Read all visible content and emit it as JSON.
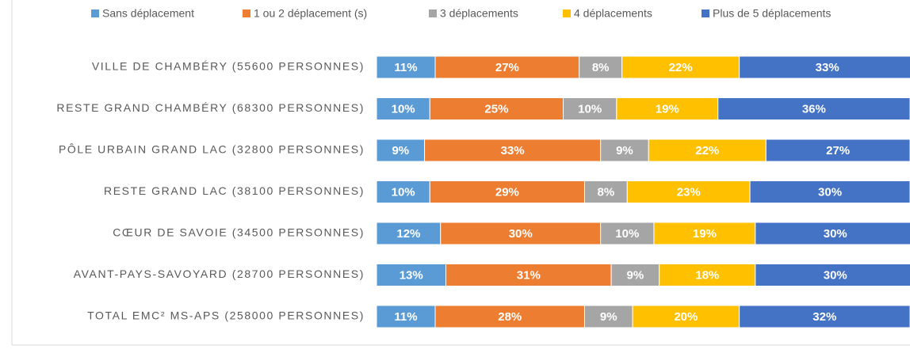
{
  "chart_data": {
    "type": "stacked_bar_horizontal",
    "categories": [
      "VILLE DE CHAMBÉRY (55600 PERSONNES)",
      "RESTE GRAND CHAMBÉRY (68300 PERSONNES)",
      "PÔLE URBAIN GRAND LAC (32800 PERSONNES)",
      "RESTE GRAND LAC (38100 PERSONNES)",
      "CŒUR DE SAVOIE (34500 PERSONNES)",
      "AVANT-PAYS-SAVOYARD (28700 PERSONNES)",
      "TOTAL EMC² MS-APS (258000 PERSONNES)"
    ],
    "series": [
      {
        "name": "Sans déplacement",
        "color": "#5b9bd5",
        "values": [
          11,
          10,
          9,
          10,
          12,
          13,
          11
        ],
        "value_labels": [
          "11%",
          "10%",
          "9%",
          "10%",
          "12%",
          "13%",
          "11%"
        ]
      },
      {
        "name": "1 ou 2 déplacement (s)",
        "color": "#ed7d31",
        "values": [
          27,
          25,
          33,
          29,
          30,
          31,
          28
        ],
        "value_labels": [
          "27%",
          "25%",
          "33%",
          "29%",
          "30%",
          "31%",
          "28%"
        ]
      },
      {
        "name": "3 déplacements",
        "color": "#a5a5a5",
        "values": [
          8,
          10,
          9,
          8,
          10,
          9,
          9
        ],
        "value_labels": [
          "8%",
          "10%",
          "9%",
          "8%",
          "10%",
          "9%",
          "9%"
        ]
      },
      {
        "name": "4 déplacements",
        "color": "#ffc000",
        "values": [
          22,
          19,
          22,
          23,
          19,
          18,
          20
        ],
        "value_labels": [
          "22%",
          "19%",
          "22%",
          "23%",
          "19%",
          "18%",
          "20%"
        ]
      },
      {
        "name": "Plus de 5 déplacements",
        "color": "#4472c4",
        "values": [
          33,
          36,
          27,
          30,
          30,
          30,
          32
        ],
        "value_labels": [
          "33%",
          "36%",
          "27%",
          "30%",
          "30%",
          "30%",
          "32%"
        ]
      }
    ],
    "legend": "top"
  }
}
